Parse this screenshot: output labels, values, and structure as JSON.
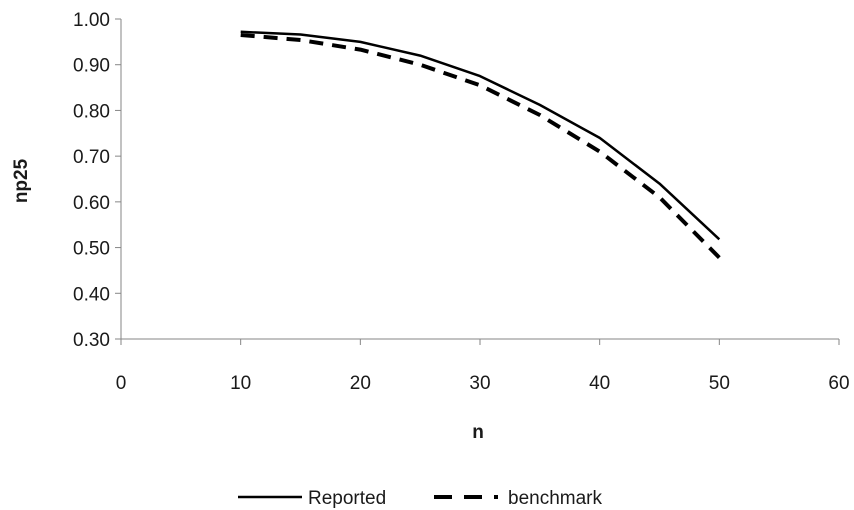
{
  "chart_data": {
    "type": "line",
    "title": "",
    "xlabel": "n",
    "ylabel": "np25",
    "xlim": [
      0,
      60
    ],
    "ylim": [
      0.3,
      1.0
    ],
    "x_ticks": [
      "0",
      "10",
      "20",
      "30",
      "40",
      "50",
      "60"
    ],
    "y_ticks": [
      "0.30",
      "0.40",
      "0.50",
      "0.60",
      "0.70",
      "0.80",
      "0.90",
      "1.00"
    ],
    "grid": false,
    "legend_position": "bottom",
    "x": [
      10,
      15,
      20,
      25,
      30,
      35,
      40,
      45,
      50
    ],
    "series": [
      {
        "name": "Reported",
        "style": "solid",
        "color": "#000000",
        "values": [
          0.972,
          0.966,
          0.95,
          0.92,
          0.875,
          0.812,
          0.74,
          0.64,
          0.518
        ]
      },
      {
        "name": "benchmark",
        "style": "dashed",
        "color": "#000000",
        "values": [
          0.965,
          0.954,
          0.933,
          0.9,
          0.855,
          0.79,
          0.71,
          0.61,
          0.478
        ]
      }
    ]
  }
}
